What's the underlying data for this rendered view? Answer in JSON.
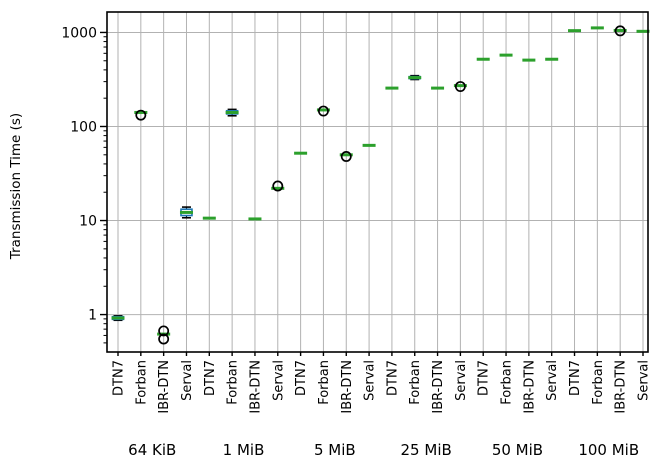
{
  "chart_data": {
    "type": "boxplot",
    "title": "",
    "ylabel": "Transmission Time (s)",
    "xlabel": "",
    "log_scale_y": true,
    "ylim": [
      0.4,
      1650
    ],
    "y_ticks": [
      1,
      10,
      100,
      1000
    ],
    "grid": "both",
    "legend_position": "none",
    "groups": [
      "64 KiB",
      "1 MiB",
      "5 MiB",
      "25 MiB",
      "50 MiB",
      "100 MiB"
    ],
    "tools": [
      "DTN7",
      "Forban",
      "IBR-DTN",
      "Serval"
    ],
    "colors": {
      "median": "#2ca02c",
      "box": "#1f77b4",
      "whisker": "#000000",
      "flier": "#000000",
      "grid": "#b2b2b2",
      "spine": "#000000"
    },
    "series": [
      {
        "group": "64 KiB",
        "tool": "DTN7",
        "median": 0.92,
        "q1": 0.89,
        "q3": 0.95,
        "whisker_low": 0.87,
        "whisker_high": 0.97,
        "fliers": []
      },
      {
        "group": "64 KiB",
        "tool": "Forban",
        "median": 141,
        "fliers": [
          132
        ]
      },
      {
        "group": "64 KiB",
        "tool": "IBR-DTN",
        "median": 0.62,
        "fliers": [
          0.67,
          0.55
        ]
      },
      {
        "group": "64 KiB",
        "tool": "Serval",
        "median": 12.2,
        "q1": 11.3,
        "q3": 13.2,
        "whisker_low": 10.7,
        "whisker_high": 13.9,
        "fliers": []
      },
      {
        "group": "1 MiB",
        "tool": "DTN7",
        "median": 10.6,
        "fliers": []
      },
      {
        "group": "1 MiB",
        "tool": "Forban",
        "median": 141,
        "q1": 136,
        "q3": 147,
        "whisker_low": 130,
        "whisker_high": 152,
        "fliers": []
      },
      {
        "group": "1 MiB",
        "tool": "IBR-DTN",
        "median": 10.4,
        "fliers": []
      },
      {
        "group": "1 MiB",
        "tool": "Serval",
        "median": 22,
        "fliers": [
          23.3
        ]
      },
      {
        "group": "5 MiB",
        "tool": "DTN7",
        "median": 52,
        "fliers": []
      },
      {
        "group": "5 MiB",
        "tool": "Forban",
        "median": 150,
        "fliers": [
          146
        ]
      },
      {
        "group": "5 MiB",
        "tool": "IBR-DTN",
        "median": 50,
        "fliers": [
          48
        ]
      },
      {
        "group": "5 MiB",
        "tool": "Serval",
        "median": 63,
        "fliers": []
      },
      {
        "group": "25 MiB",
        "tool": "DTN7",
        "median": 256,
        "fliers": []
      },
      {
        "group": "25 MiB",
        "tool": "Forban",
        "median": 331,
        "q1": 323,
        "q3": 339,
        "whisker_low": 316,
        "whisker_high": 347,
        "fliers": []
      },
      {
        "group": "25 MiB",
        "tool": "IBR-DTN",
        "median": 256,
        "fliers": []
      },
      {
        "group": "25 MiB",
        "tool": "Serval",
        "median": 272,
        "fliers": [
          266
        ]
      },
      {
        "group": "50 MiB",
        "tool": "DTN7",
        "median": 519,
        "fliers": []
      },
      {
        "group": "50 MiB",
        "tool": "Forban",
        "median": 574,
        "fliers": []
      },
      {
        "group": "50 MiB",
        "tool": "IBR-DTN",
        "median": 508,
        "fliers": []
      },
      {
        "group": "50 MiB",
        "tool": "Serval",
        "median": 519,
        "fliers": []
      },
      {
        "group": "100 MiB",
        "tool": "DTN7",
        "median": 1045,
        "fliers": []
      },
      {
        "group": "100 MiB",
        "tool": "Forban",
        "median": 1118,
        "fliers": []
      },
      {
        "group": "100 MiB",
        "tool": "IBR-DTN",
        "median": 1050,
        "fliers": [
          1040
        ]
      },
      {
        "group": "100 MiB",
        "tool": "Serval",
        "median": 1028,
        "fliers": []
      }
    ]
  }
}
